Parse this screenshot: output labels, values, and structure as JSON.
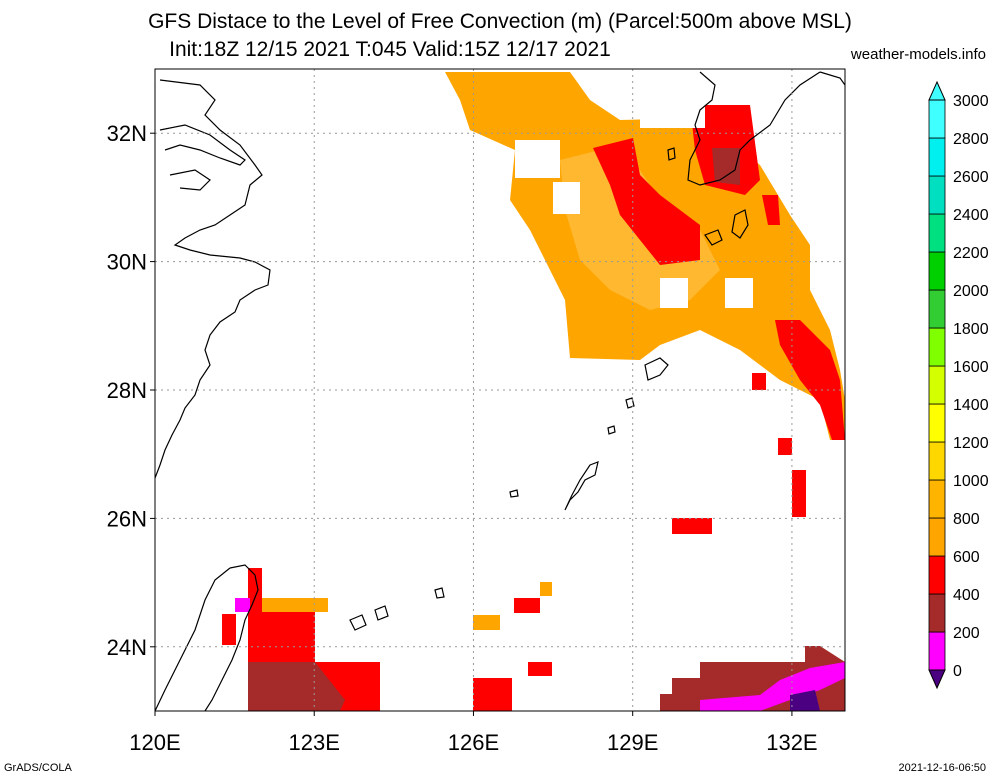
{
  "title": {
    "line1": "GFS Distace to the Level of Free Convection (m) (Parcel:500m above MSL)",
    "line2": "Init:18Z 12/15 2021 T:045 Valid:15Z 12/17 2021"
  },
  "credit": "weather-models.info",
  "footer": {
    "left": "GrADS/COLA",
    "right": "2021-12-16-06:50"
  },
  "map": {
    "lon_range": [
      120,
      133
    ],
    "lat_range": [
      23,
      33
    ],
    "lon_ticks": [
      "120E",
      "123E",
      "126E",
      "129E",
      "132E"
    ],
    "lat_ticks": [
      "24N",
      "26N",
      "28N",
      "30N",
      "32N"
    ],
    "grid": true
  },
  "colorbar": {
    "levels": [
      "0",
      "200",
      "400",
      "600",
      "800",
      "1000",
      "1200",
      "1400",
      "1600",
      "1800",
      "2000",
      "2200",
      "2400",
      "2600",
      "2800",
      "3000"
    ],
    "colors": [
      "#4b0082",
      "#ff00ff",
      "#a52a2a",
      "#ff0000",
      "#ffa500",
      "#ffb400",
      "#ffd700",
      "#ffff00",
      "#d4ff00",
      "#7fff00",
      "#32cd32",
      "#00d000",
      "#00e080",
      "#00e0c0",
      "#00f0f0",
      "#40ffff"
    ]
  }
}
